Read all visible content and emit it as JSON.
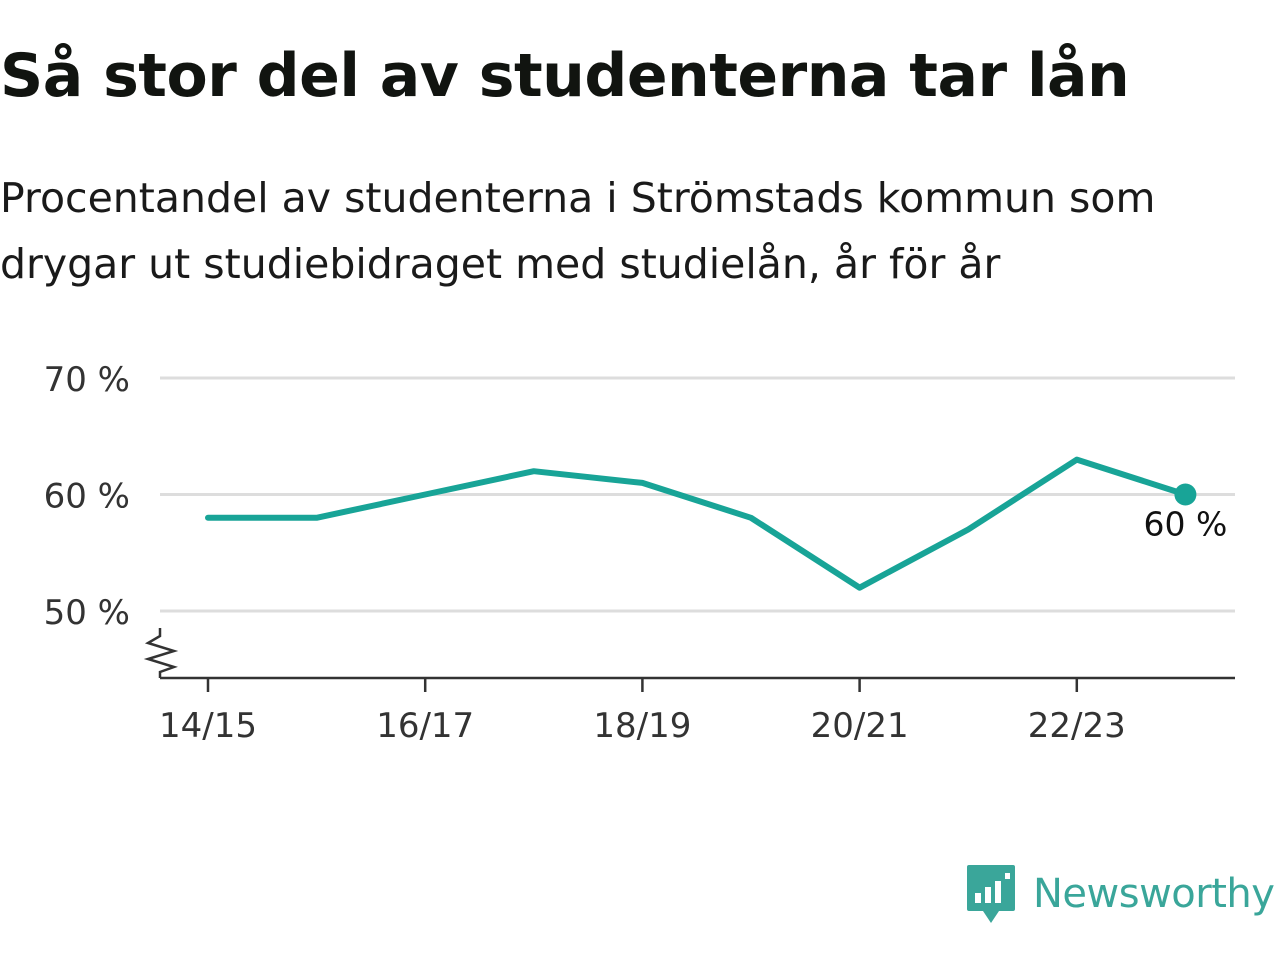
{
  "title": "Så stor del av studenterna tar lån",
  "subtitle": "Procentandel av studenterna i Strömstads kommun som drygar ut studiebidraget med studielån, år för år",
  "brand": {
    "name": "Newsworthy",
    "icon": "newsworthy-logo-icon",
    "color": "#3aa69a"
  },
  "colors": {
    "line": "#18a497",
    "grid": "#dddddd",
    "axis": "#333333",
    "text": "#333333"
  },
  "chart_data": {
    "type": "line",
    "title": "Så stor del av studenterna tar lån",
    "subtitle": "Procentandel av studenterna i Strömstads kommun som drygar ut studiebidraget med studielån, år för år",
    "x": [
      "14/15",
      "15/16",
      "16/17",
      "17/18",
      "18/19",
      "19/20",
      "20/21",
      "21/22",
      "22/23",
      "23/24"
    ],
    "xticks": [
      "14/15",
      "16/17",
      "18/19",
      "20/21",
      "22/23"
    ],
    "series": [
      {
        "values": [
          58,
          58,
          60,
          62,
          61,
          58,
          52,
          57,
          63,
          60
        ]
      }
    ],
    "yticks": [
      {
        "value": 50,
        "label": "50 %"
      },
      {
        "value": 60,
        "label": "60 %"
      },
      {
        "value": 70,
        "label": "70 %"
      }
    ],
    "ylim": [
      44,
      70
    ],
    "y_axis_break": true,
    "grid": true,
    "end_label": "60 %",
    "xlabel": "",
    "ylabel": ""
  }
}
